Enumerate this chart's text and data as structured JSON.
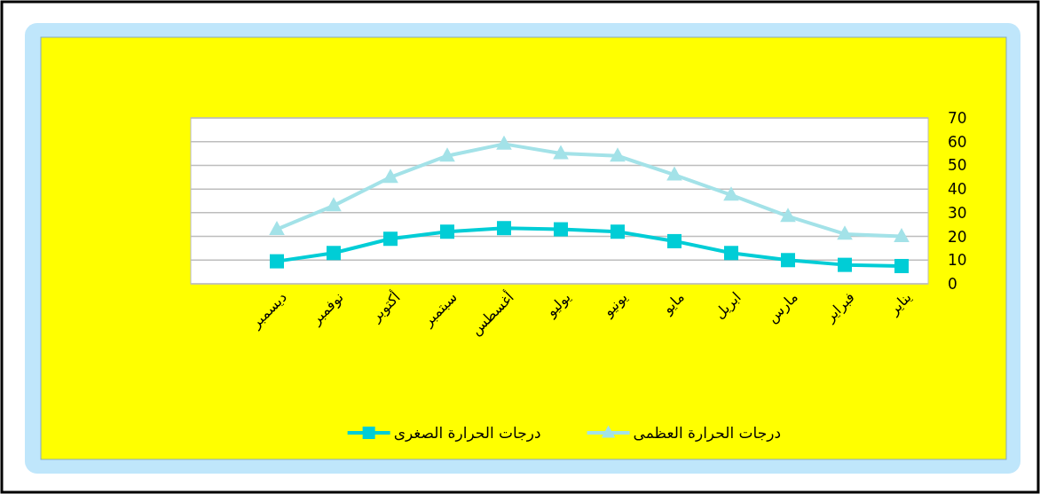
{
  "chart_data": {
    "type": "line",
    "categories": [
      "ديسمبر",
      "نوفمبر",
      "أكتوبر",
      "سبتمبر",
      "أغسطس",
      "يوليو",
      "يونيو",
      "مايو",
      "ابريل",
      "مارس",
      "فبراير",
      "يناير"
    ],
    "series": [
      {
        "name": "درجات الحرارة العظمى",
        "color": "#a3e2e8",
        "marker": "triangle",
        "values": [
          23,
          33,
          45,
          54,
          59,
          55,
          54,
          46,
          37.5,
          28.5,
          21,
          20
        ]
      },
      {
        "name": "درجات الحرارة الصغرى",
        "color": "#00cdd6",
        "marker": "square",
        "values": [
          9.5,
          13,
          19,
          22,
          23.5,
          23,
          22,
          18,
          13,
          10,
          8,
          7.5
        ]
      }
    ],
    "ylim": [
      0,
      70
    ],
    "yticks": [
      0,
      10,
      20,
      30,
      40,
      50,
      60,
      70
    ],
    "grid": "y",
    "legend": "bottom"
  }
}
